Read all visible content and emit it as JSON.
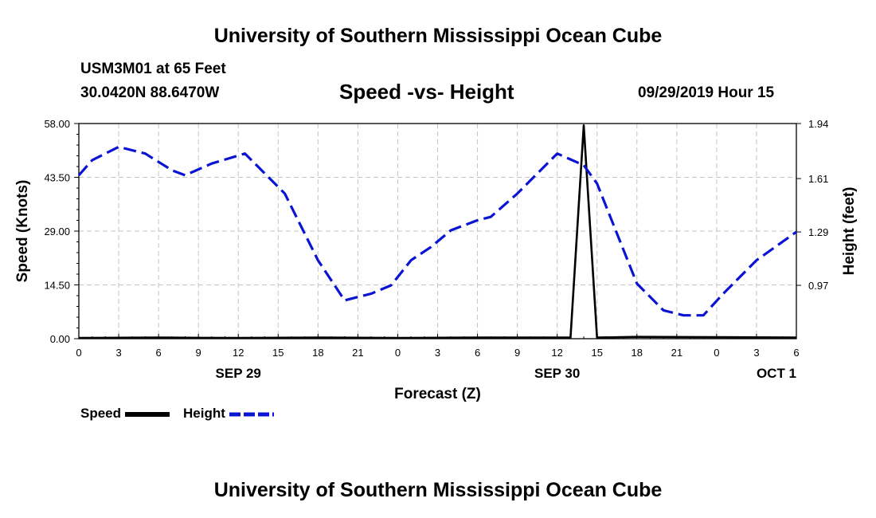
{
  "page": {
    "top_title": "University of Southern Mississippi Ocean Cube",
    "bottom_title": "University of Southern Mississippi Ocean Cube",
    "station": "USM3M01 at 65 Feet",
    "coords": "30.0420N 88.6470W",
    "subtitle": "Speed -vs- Height",
    "datetime": "09/29/2019 Hour 15"
  },
  "chart_data": {
    "type": "line",
    "title": "Speed -vs- Height",
    "xlabel": "Forecast (Z)",
    "ylabel": "Speed (Knots)",
    "y2label": "Height (feet)",
    "xlim": [
      0,
      54
    ],
    "ylim": [
      0,
      58
    ],
    "y2lim": [
      0.65,
      1.94
    ],
    "x_ticks": [
      0,
      3,
      6,
      9,
      12,
      15,
      18,
      21,
      24,
      27,
      30,
      33,
      36,
      39,
      42,
      45,
      48,
      51,
      54
    ],
    "x_tick_labels": [
      "0",
      "3",
      "6",
      "9",
      "12",
      "15",
      "18",
      "21",
      "0",
      "3",
      "6",
      "9",
      "12",
      "15",
      "18",
      "21",
      "0",
      "3",
      "6"
    ],
    "date_labels": [
      {
        "x": 12,
        "label": "SEP 29"
      },
      {
        "x": 36,
        "label": "SEP 30"
      },
      {
        "x": 52.5,
        "label": "OCT 1"
      }
    ],
    "y_ticks": [
      0,
      14.5,
      29,
      43.5,
      58
    ],
    "y_tick_labels": [
      "0.00",
      "14.50",
      "29.00",
      "43.50",
      "58.00"
    ],
    "y2_ticks": [
      0.97,
      1.29,
      1.61,
      1.94
    ],
    "y2_tick_labels": [
      "0.97",
      "1.29",
      "1.61",
      "1.94"
    ],
    "grid": true,
    "series": [
      {
        "name": "Speed",
        "axis": "left",
        "color": "#000000",
        "dash": "solid",
        "x": [
          0,
          6,
          12,
          18,
          24,
          30,
          36,
          37,
          38,
          39,
          42,
          48,
          54
        ],
        "y": [
          0.2,
          0.3,
          0.2,
          0.3,
          0.2,
          0.3,
          0.3,
          0.3,
          57.5,
          0.3,
          0.5,
          0.4,
          0.3
        ]
      },
      {
        "name": "Height",
        "axis": "right",
        "color": "#0a14d2",
        "dash": "dashed",
        "x": [
          0,
          1,
          3,
          5,
          7,
          8,
          10,
          12.5,
          15.5,
          18,
          20,
          22,
          23.5,
          25,
          26.5,
          28,
          30,
          31,
          33,
          36,
          38,
          39,
          40,
          42,
          44,
          45.5,
          47,
          48.5,
          51,
          54
        ],
        "y": [
          1.63,
          1.72,
          1.8,
          1.76,
          1.66,
          1.63,
          1.7,
          1.76,
          1.52,
          1.12,
          0.88,
          0.92,
          0.97,
          1.12,
          1.2,
          1.3,
          1.36,
          1.38,
          1.52,
          1.76,
          1.69,
          1.58,
          1.38,
          0.98,
          0.82,
          0.79,
          0.79,
          0.92,
          1.12,
          1.29
        ]
      }
    ],
    "legend": [
      {
        "label": "Speed",
        "color": "#000000",
        "style": "solid"
      },
      {
        "label": "Height",
        "color": "#0a14d2",
        "style": "dashed"
      }
    ],
    "legend_position": "bottom-left"
  }
}
